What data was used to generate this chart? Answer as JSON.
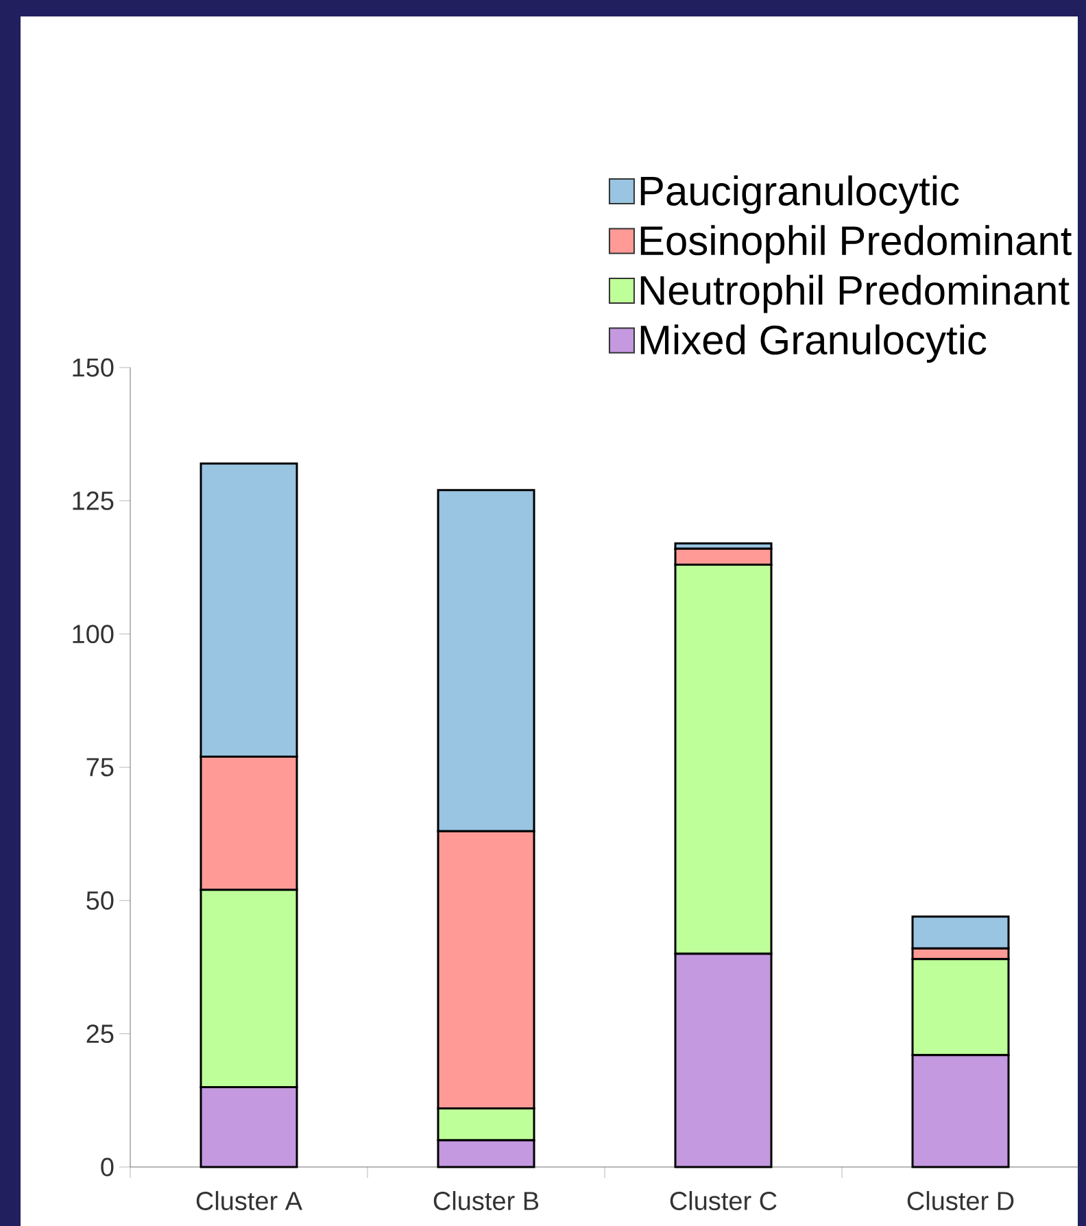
{
  "chart_data": {
    "type": "bar",
    "stacked": true,
    "categories": [
      "Cluster A",
      "Cluster B",
      "Cluster C",
      "Cluster D"
    ],
    "series": [
      {
        "name": "Mixed Granulocytic",
        "color": "#c499e0",
        "values": [
          15,
          5,
          40,
          21
        ]
      },
      {
        "name": "Neutrophil Predominant",
        "color": "#bfff99",
        "values": [
          37,
          6,
          73,
          18
        ]
      },
      {
        "name": "Eosinophil Predominant",
        "color": "#ff9a96",
        "values": [
          25,
          52,
          3,
          2
        ]
      },
      {
        "name": "Paucigranulocytic",
        "color": "#99c4e2",
        "values": [
          55,
          64,
          1,
          6
        ]
      }
    ],
    "ylim": [
      0,
      150
    ],
    "yticks": [
      0,
      25,
      50,
      75,
      100,
      125,
      150
    ],
    "grid": false,
    "legend": "top right"
  }
}
